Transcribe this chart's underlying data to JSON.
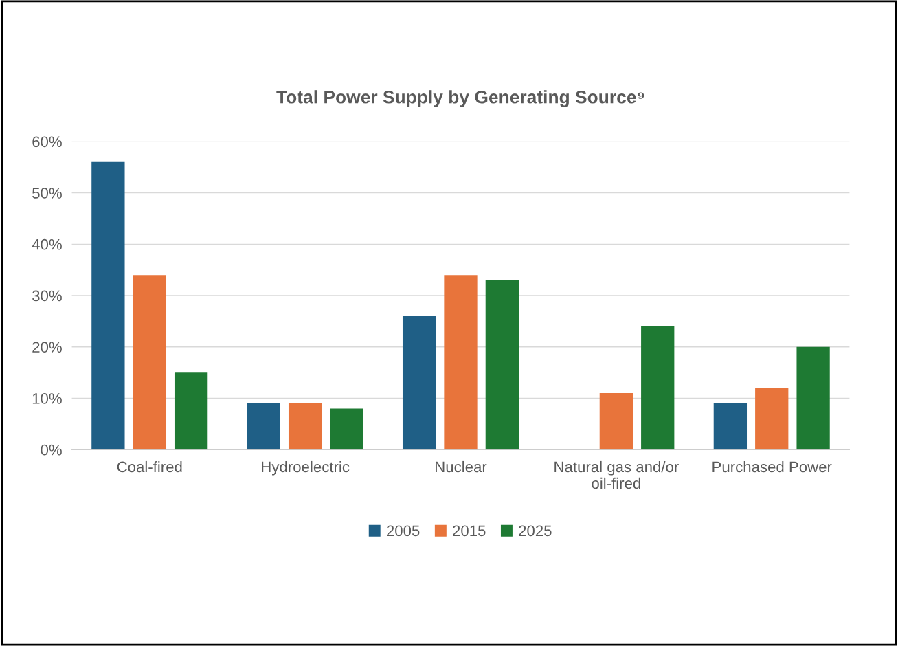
{
  "chart_data": {
    "type": "bar",
    "title": "Total Power Supply by Generating Source⁹",
    "categories": [
      "Coal-fired",
      "Hydroelectric",
      "Nuclear",
      "Natural gas and/or\noil-fired",
      "Purchased Power"
    ],
    "series": [
      {
        "name": "2005",
        "color": "#1f5f86",
        "values": [
          56,
          9,
          26,
          null,
          9
        ]
      },
      {
        "name": "2015",
        "color": "#e8743b",
        "values": [
          34,
          9,
          34,
          11,
          12
        ]
      },
      {
        "name": "2025",
        "color": "#1e7a33",
        "values": [
          15,
          8,
          33,
          24,
          20
        ]
      }
    ],
    "ylim": [
      0,
      60
    ],
    "yticks": [
      {
        "value": 0,
        "label": "0%"
      },
      {
        "value": 10,
        "label": "10%"
      },
      {
        "value": 20,
        "label": "20%"
      },
      {
        "value": 30,
        "label": "30%"
      },
      {
        "value": 40,
        "label": "40%"
      },
      {
        "value": 50,
        "label": "50%"
      },
      {
        "value": 60,
        "label": "60%"
      }
    ],
    "grid": "y",
    "legend": "bottom"
  }
}
